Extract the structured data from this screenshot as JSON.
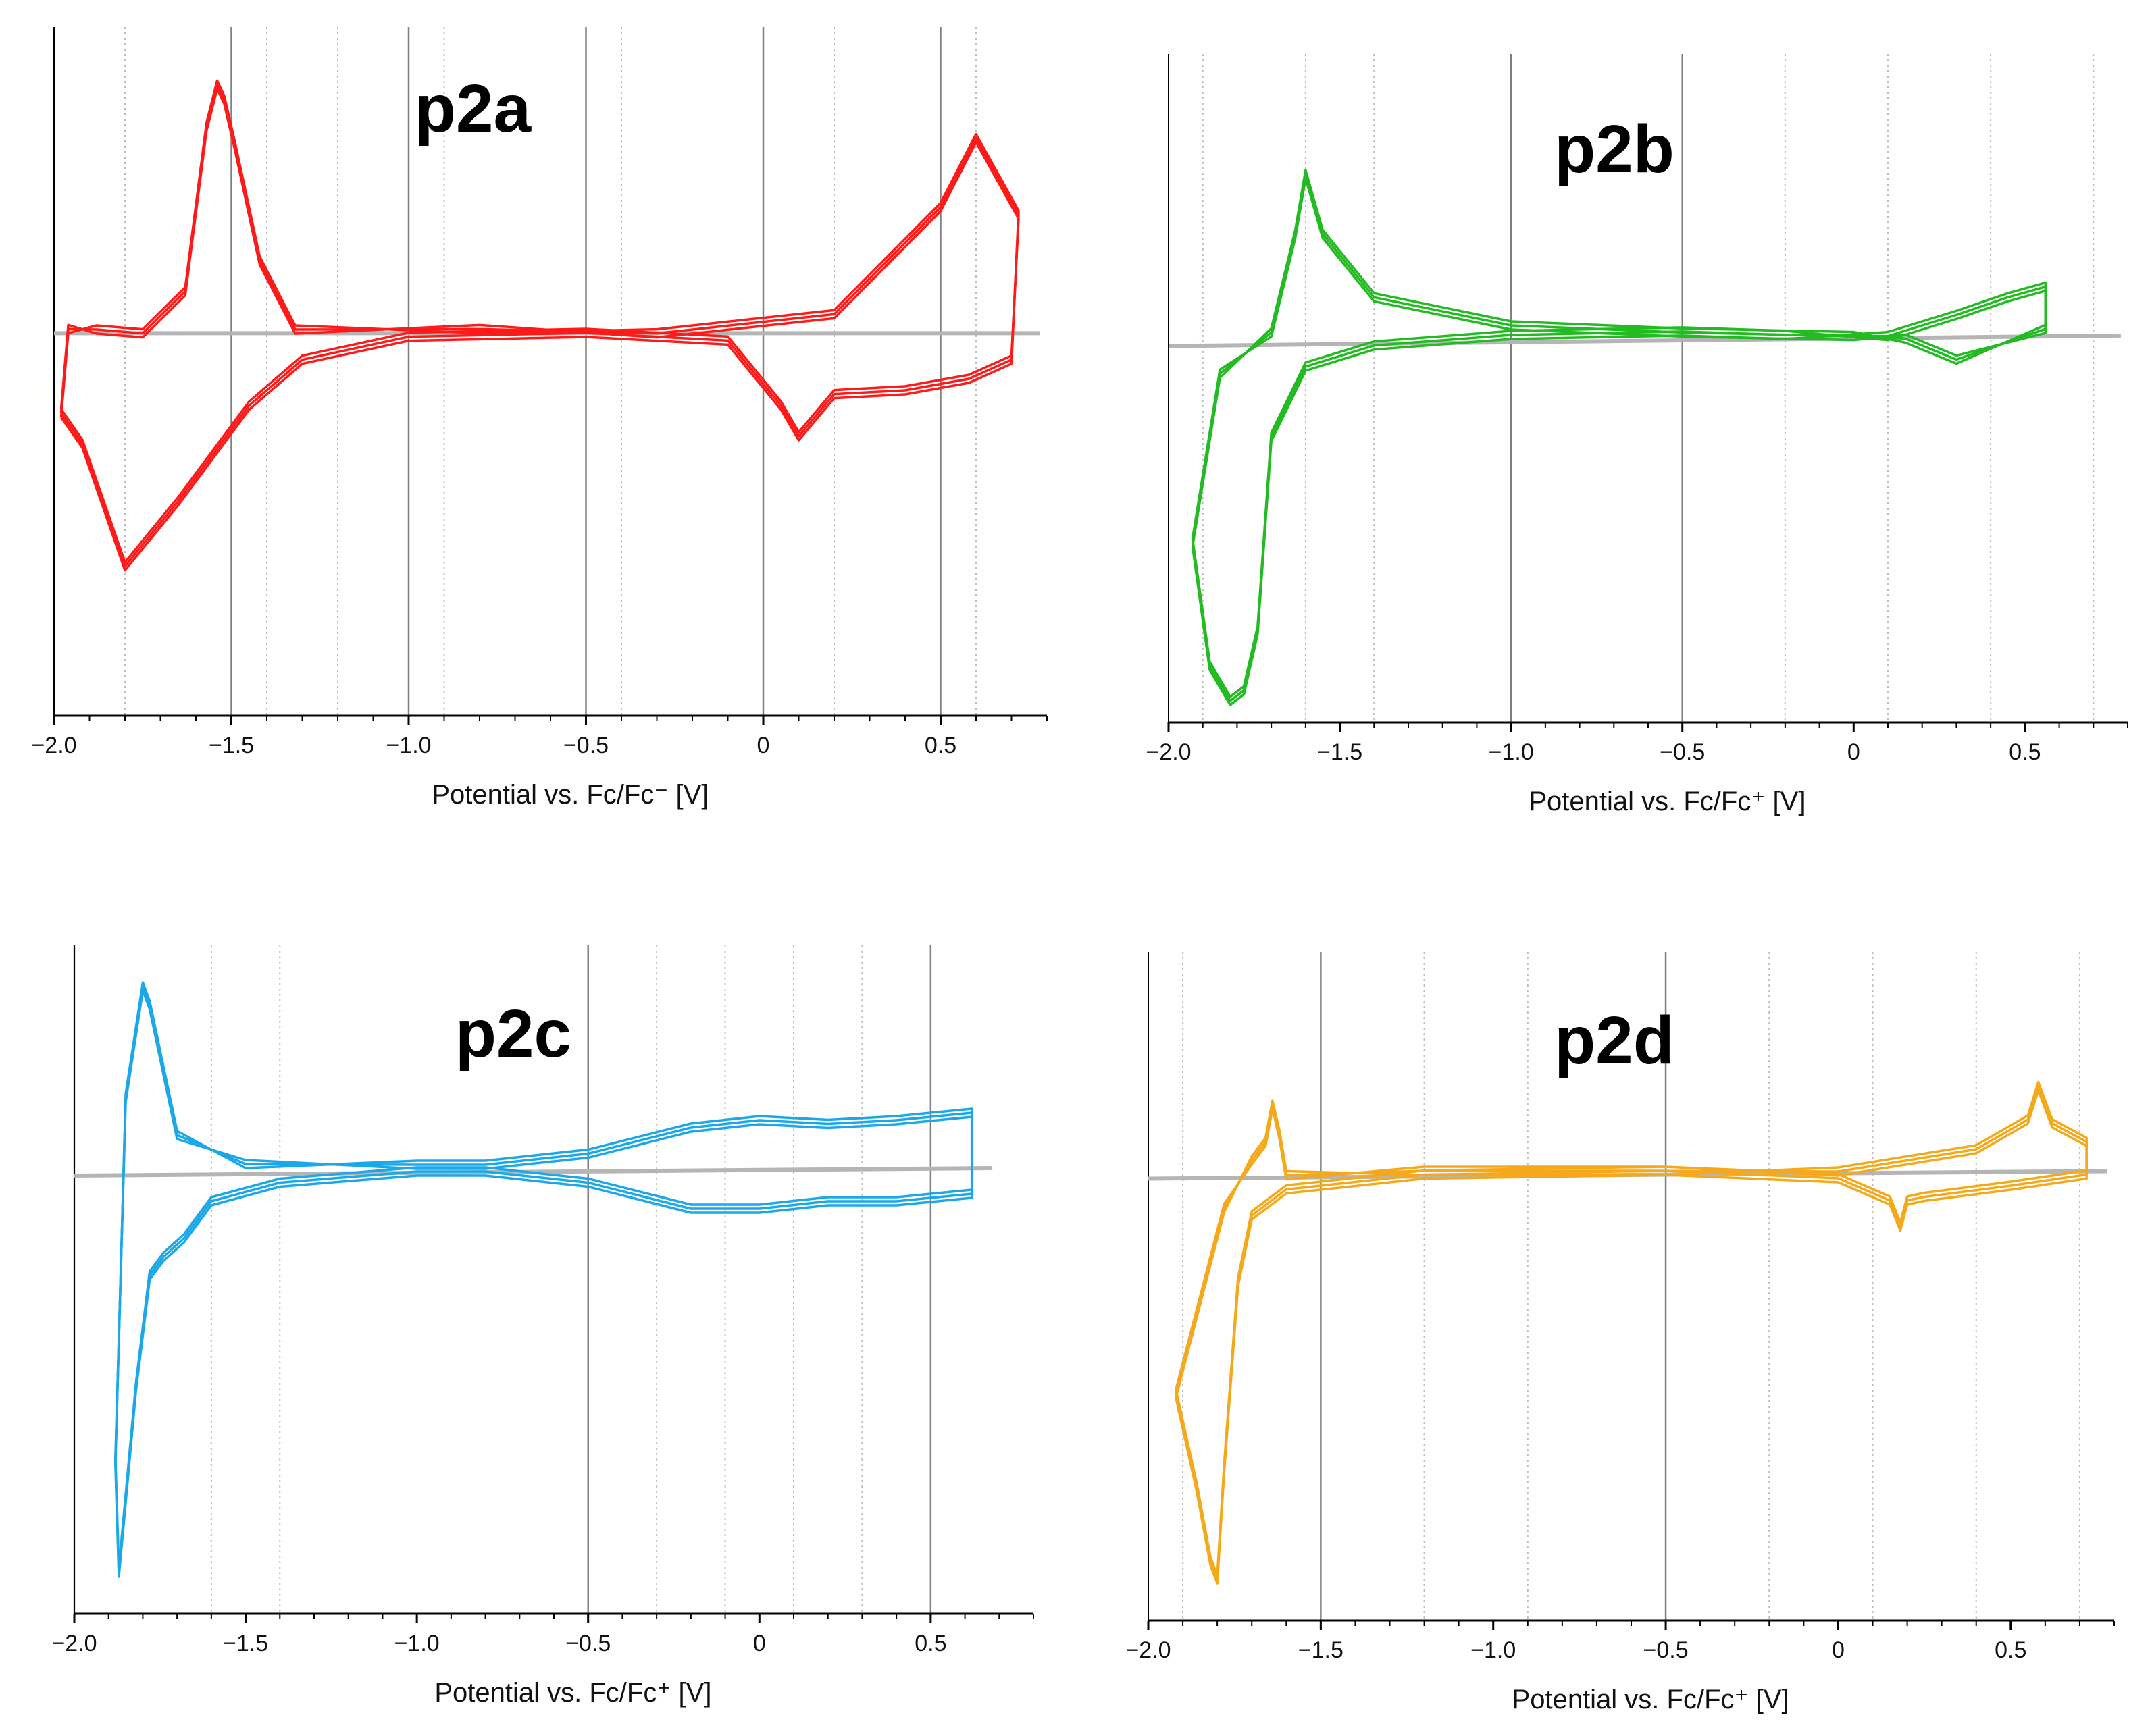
{
  "chart_data": [
    {
      "type": "line",
      "panel": "p2a",
      "title": "p2a",
      "color": "#ff1a1a",
      "xlabel": "Potential vs. Fc/Fc⁻ [V]",
      "xlim": [
        -2.0,
        0.8
      ],
      "ylim": [
        -1.0,
        0.8
      ],
      "ticks": [
        -2.0,
        -1.5,
        -1.0,
        -0.5,
        0,
        0.5
      ],
      "tick_labels": [
        "−2.0",
        "−1.5",
        "−1.0",
        "−0.5",
        "0",
        "0.5"
      ],
      "solid_gridlines": [
        -2.0,
        -1.5,
        -1.0,
        -0.5,
        0,
        0.5
      ],
      "dotted_gridlines": [
        -1.8,
        -1.4,
        -1.2,
        -0.9,
        -0.4,
        0.2,
        0.6
      ],
      "baseline": {
        "x": [
          -2.0,
          0.78
        ],
        "y": [
          0.0,
          0.0
        ]
      },
      "series": [
        {
          "name": "CV",
          "x": [
            -1.98,
            -1.92,
            -1.8,
            -1.65,
            -1.45,
            -1.3,
            -1.0,
            -0.5,
            -0.1,
            0.05,
            0.1,
            0.2,
            0.4,
            0.58,
            0.7,
            0.72,
            0.6,
            0.5,
            0.2,
            -0.3,
            -0.8,
            -1.32,
            -1.42,
            -1.49,
            -1.52,
            -1.54,
            -1.57,
            -1.63,
            -1.75,
            -1.88,
            -1.96,
            -1.98
          ],
          "y": [
            -0.22,
            -0.3,
            -0.62,
            -0.45,
            -0.2,
            -0.08,
            -0.02,
            -0.01,
            -0.03,
            -0.2,
            -0.28,
            -0.17,
            -0.16,
            -0.13,
            -0.08,
            0.32,
            0.52,
            0.34,
            0.06,
            0.01,
            0.0,
            0.02,
            0.2,
            0.5,
            0.62,
            0.66,
            0.55,
            0.12,
            0.01,
            0.02,
            0.0,
            -0.22
          ]
        }
      ]
    },
    {
      "type": "line",
      "panel": "p2b",
      "title": "p2b",
      "color": "#22bb22",
      "xlabel": "Potential vs. Fc/Fc⁺ [V]",
      "xlim": [
        -2.0,
        0.8
      ],
      "ylim": [
        -1.1,
        0.8
      ],
      "ticks": [
        -2.0,
        -1.5,
        -1.0,
        -0.5,
        0,
        0.5
      ],
      "tick_labels": [
        "−2.0",
        "−1.5",
        "−1.0",
        "−0.5",
        "0",
        "0.5"
      ],
      "solid_gridlines": [
        -1.0,
        -0.5
      ],
      "dotted_gridlines": [
        -1.9,
        -1.6,
        -1.4,
        -0.2,
        0.1,
        0.4,
        0.7
      ],
      "baseline": {
        "x": [
          -2.0,
          0.78
        ],
        "y": [
          -0.03,
          0.0
        ]
      },
      "series": [
        {
          "name": "CV",
          "x": [
            -1.93,
            -1.88,
            -1.82,
            -1.78,
            -1.74,
            -1.7,
            -1.6,
            -1.4,
            -1.0,
            -0.5,
            -0.2,
            0.1,
            0.3,
            0.45,
            0.56,
            0.56,
            0.3,
            0.15,
            0.0,
            -0.5,
            -1.0,
            -1.4,
            -1.55,
            -1.6,
            -1.63,
            -1.7,
            -1.85,
            -1.93
          ],
          "y": [
            -0.6,
            -0.95,
            -1.05,
            -1.02,
            -0.85,
            -0.3,
            -0.1,
            -0.04,
            -0.01,
            0.0,
            -0.01,
            0.01,
            0.07,
            0.12,
            0.15,
            0.03,
            -0.08,
            -0.02,
            0.01,
            0.02,
            0.04,
            0.12,
            0.3,
            0.47,
            0.3,
            0.02,
            -0.12,
            -0.6
          ]
        }
      ]
    },
    {
      "type": "line",
      "panel": "p2c",
      "title": "p2c",
      "color": "#1aa8e8",
      "xlabel": "Potential vs. Fc/Fc⁺ [V]",
      "xlim": [
        -2.0,
        0.8
      ],
      "ylim": [
        -1.2,
        0.6
      ],
      "ticks": [
        -2.0,
        -1.5,
        -1.0,
        -0.5,
        0,
        0.5
      ],
      "tick_labels": [
        "−2.0",
        "−1.5",
        "−1.0",
        "−0.5",
        "0",
        "0.5"
      ],
      "solid_gridlines": [
        -2.0,
        -0.5,
        0.5
      ],
      "dotted_gridlines": [
        -1.6,
        -1.4,
        -0.3,
        -0.1,
        0.1,
        0.3
      ],
      "baseline": {
        "x": [
          -2.0,
          0.68
        ],
        "y": [
          -0.02,
          0.0
        ]
      },
      "series": [
        {
          "name": "CV",
          "x": [
            -1.88,
            -1.87,
            -1.82,
            -1.78,
            -1.74,
            -1.68,
            -1.6,
            -1.4,
            -1.0,
            -0.8,
            -0.5,
            -0.2,
            0.0,
            0.2,
            0.4,
            0.62,
            0.62,
            0.4,
            0.2,
            0.0,
            -0.2,
            -0.5,
            -0.8,
            -1.0,
            -1.5,
            -1.7,
            -1.78,
            -1.8,
            -1.85,
            -1.88
          ],
          "y": [
            -0.8,
            -1.1,
            -0.6,
            -0.3,
            -0.25,
            -0.2,
            -0.1,
            -0.05,
            -0.02,
            -0.02,
            -0.05,
            -0.12,
            -0.12,
            -0.1,
            -0.1,
            -0.08,
            0.16,
            0.14,
            0.13,
            0.14,
            0.12,
            0.05,
            0.02,
            0.02,
            0.0,
            0.1,
            0.45,
            0.5,
            0.2,
            -0.8
          ]
        }
      ]
    },
    {
      "type": "line",
      "panel": "p2d",
      "title": "p2d",
      "color": "#f5a91a",
      "xlabel": "Potential vs. Fc/Fc⁺ [V]",
      "xlim": [
        -2.0,
        0.8
      ],
      "ylim": [
        -1.2,
        0.6
      ],
      "ticks": [
        -2.0,
        -1.5,
        -1.0,
        -0.5,
        0,
        0.5
      ],
      "tick_labels": [
        "−2.0",
        "−1.5",
        "−1.0",
        "−0.5",
        "0",
        "0.5"
      ],
      "solid_gridlines": [
        -1.5,
        -0.5
      ],
      "dotted_gridlines": [
        -1.9,
        -1.2,
        -0.9,
        -0.2,
        0.1,
        0.4,
        0.7
      ],
      "baseline": {
        "x": [
          -2.0,
          0.78
        ],
        "y": [
          -0.01,
          0.01
        ]
      },
      "series": [
        {
          "name": "CV",
          "x": [
            -1.92,
            -1.86,
            -1.82,
            -1.8,
            -1.78,
            -1.74,
            -1.7,
            -1.6,
            -1.2,
            -0.5,
            0.0,
            0.15,
            0.18,
            0.2,
            0.25,
            0.5,
            0.72,
            0.72,
            0.62,
            0.58,
            0.55,
            0.4,
            0.0,
            -0.5,
            -1.2,
            -1.6,
            -1.62,
            -1.64,
            -1.66,
            -1.7,
            -1.78,
            -1.92
          ],
          "y": [
            -0.6,
            -0.85,
            -1.05,
            -1.1,
            -0.8,
            -0.3,
            -0.12,
            -0.05,
            -0.01,
            0.0,
            -0.02,
            -0.08,
            -0.15,
            -0.08,
            -0.07,
            -0.04,
            -0.01,
            0.1,
            0.15,
            0.25,
            0.16,
            0.08,
            0.02,
            0.0,
            0.0,
            0.01,
            0.12,
            0.2,
            0.1,
            0.05,
            -0.1,
            -0.6
          ]
        }
      ]
    }
  ]
}
